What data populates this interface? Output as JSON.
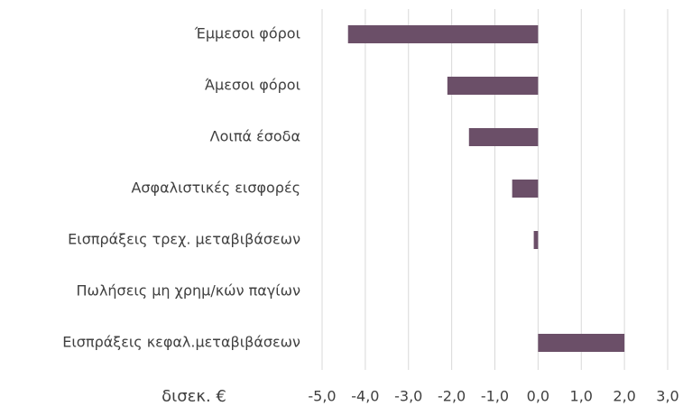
{
  "chart_data": {
    "type": "bar",
    "orientation": "horizontal",
    "xlabel": "δισεκ. €",
    "categories": [
      "Έμμεσοι φόροι",
      "Άμεσοι φόροι",
      "Λοιπά έσοδα",
      "Ασφαλιστικές εισφορές",
      "Εισπράξεις τρεχ. μεταβιβάσεων",
      "Πωλήσεις μη χρημ/κών παγίων",
      "Εισπράξεις κεφαλ.μεταβιβάσεων"
    ],
    "values": [
      -4.4,
      -2.1,
      -1.6,
      -0.6,
      -0.1,
      0,
      2.0
    ],
    "color": "#6b4f68",
    "xlim": [
      -5,
      3
    ],
    "xticks": [
      {
        "value": -5,
        "label": "-5,0"
      },
      {
        "value": -4,
        "label": "-4,0"
      },
      {
        "value": -3,
        "label": "-3,0"
      },
      {
        "value": -2,
        "label": "-2,0"
      },
      {
        "value": -1,
        "label": "-1,0"
      },
      {
        "value": 0,
        "label": "0,0"
      },
      {
        "value": 1,
        "label": "1,0"
      },
      {
        "value": 2,
        "label": "2,0"
      },
      {
        "value": 3,
        "label": "3,0"
      }
    ],
    "grid": true
  }
}
